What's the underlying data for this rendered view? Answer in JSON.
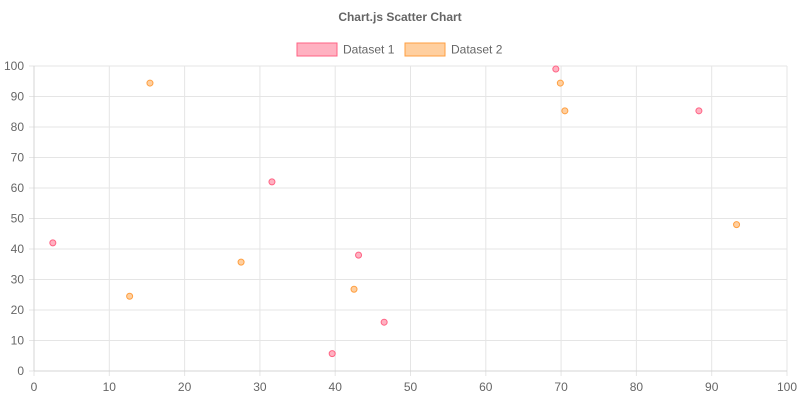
{
  "chart_data": {
    "type": "scatter",
    "title": "Chart.js Scatter Chart",
    "xlabel": "",
    "ylabel": "",
    "xlim": [
      0,
      100
    ],
    "ylim": [
      0,
      100
    ],
    "xticks": [
      0,
      10,
      20,
      30,
      40,
      50,
      60,
      70,
      80,
      90,
      100
    ],
    "yticks": [
      0,
      10,
      20,
      30,
      40,
      50,
      60,
      70,
      80,
      90,
      100
    ],
    "grid": true,
    "legend_position": "top",
    "series": [
      {
        "name": "Dataset 1",
        "border_color": "#ff6384",
        "fill_color": "#ffb1c1",
        "points": [
          {
            "x": 2.5,
            "y": 42
          },
          {
            "x": 31.6,
            "y": 62
          },
          {
            "x": 43.1,
            "y": 38
          },
          {
            "x": 46.5,
            "y": 16
          },
          {
            "x": 39.6,
            "y": 5.7
          },
          {
            "x": 69.3,
            "y": 99
          },
          {
            "x": 88.3,
            "y": 85.3
          }
        ]
      },
      {
        "name": "Dataset 2",
        "border_color": "#ff9f40",
        "fill_color": "#ffcf9f",
        "points": [
          {
            "x": 15.4,
            "y": 94.4
          },
          {
            "x": 12.7,
            "y": 24.5
          },
          {
            "x": 27.5,
            "y": 35.7
          },
          {
            "x": 42.5,
            "y": 26.8
          },
          {
            "x": 69.9,
            "y": 94.4
          },
          {
            "x": 70.5,
            "y": 85.3
          },
          {
            "x": 93.3,
            "y": 48
          }
        ]
      }
    ]
  }
}
